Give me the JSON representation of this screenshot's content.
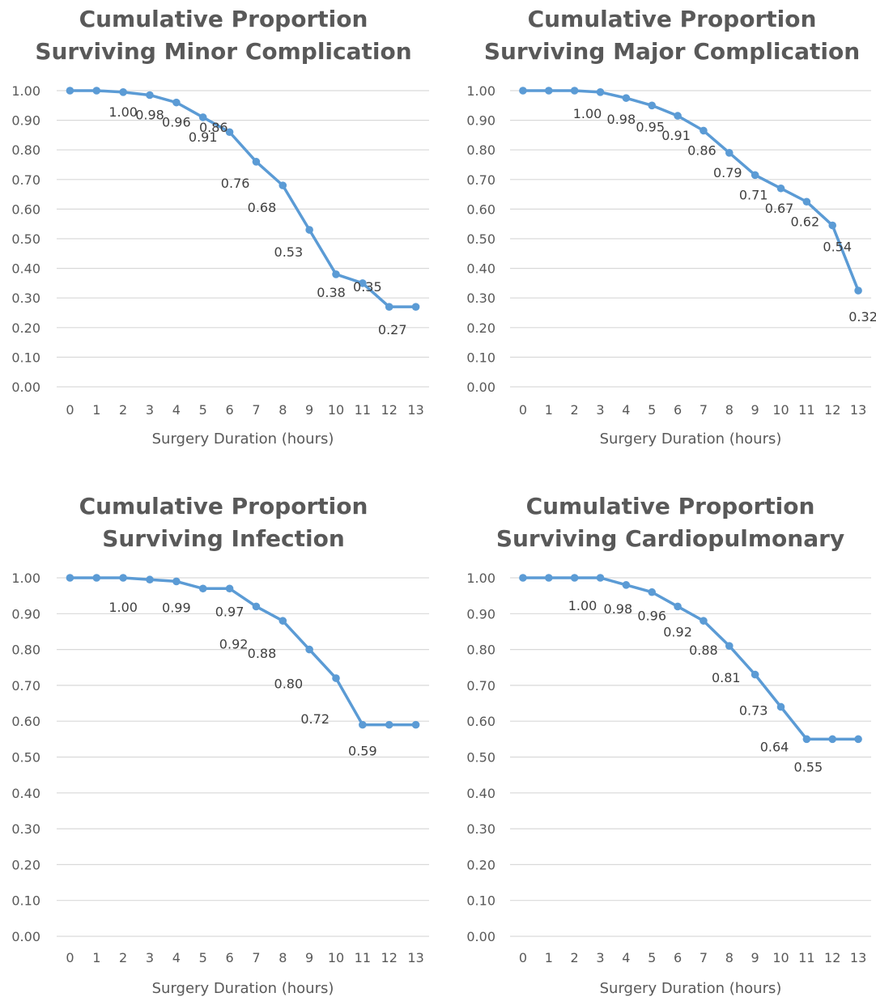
{
  "chart_data": [
    {
      "type": "line",
      "title": [
        "Cumulative Proportion",
        "Surviving Minor Complication"
      ],
      "xlabel": "Surgery Duration (hours)",
      "categories": [
        "0",
        "1",
        "2",
        "3",
        "4",
        "5",
        "6",
        "7",
        "8",
        "9",
        "10",
        "11",
        "12",
        "13"
      ],
      "yticks": [
        "0.00",
        "0.10",
        "0.20",
        "0.30",
        "0.40",
        "0.50",
        "0.60",
        "0.70",
        "0.80",
        "0.90",
        "1.00"
      ],
      "ylim": [
        0,
        1
      ],
      "grid": true,
      "series": [
        {
          "values": [
            1.0,
            1.0,
            0.995,
            0.985,
            0.96,
            0.91,
            0.86,
            0.76,
            0.68,
            0.53,
            0.38,
            0.35,
            0.27,
            0.27
          ]
        }
      ],
      "data_labels": [
        {
          "index": 2,
          "text": "1.00"
        },
        {
          "index": 3,
          "text": "0.98"
        },
        {
          "index": 4,
          "text": "0.96"
        },
        {
          "index": 5,
          "text": "0.91"
        },
        {
          "index": 6,
          "text": "0.86"
        },
        {
          "index": 7,
          "text": "0.76"
        },
        {
          "index": 8,
          "text": "0.68"
        },
        {
          "index": 9,
          "text": "0.53"
        },
        {
          "index": 10,
          "text": "0.38"
        },
        {
          "index": 11,
          "text": "0.35"
        },
        {
          "index": 12,
          "text": "0.27"
        }
      ]
    },
    {
      "type": "line",
      "title": [
        "Cumulative Proportion",
        "Surviving Major Complication"
      ],
      "xlabel": "Surgery Duration (hours)",
      "categories": [
        "0",
        "1",
        "2",
        "3",
        "4",
        "5",
        "6",
        "7",
        "8",
        "9",
        "10",
        "11",
        "12",
        "13"
      ],
      "yticks": [
        "0.00",
        "0.10",
        "0.20",
        "0.30",
        "0.40",
        "0.50",
        "0.60",
        "0.70",
        "0.80",
        "0.90",
        "1.00"
      ],
      "ylim": [
        0,
        1
      ],
      "grid": true,
      "series": [
        {
          "values": [
            1.0,
            1.0,
            1.0,
            0.995,
            0.975,
            0.95,
            0.915,
            0.865,
            0.79,
            0.715,
            0.67,
            0.625,
            0.545,
            0.325
          ]
        }
      ],
      "data_labels": [
        {
          "index": 3,
          "text": "1.00"
        },
        {
          "index": 4,
          "text": "0.98"
        },
        {
          "index": 5,
          "text": "0.95"
        },
        {
          "index": 6,
          "text": "0.91"
        },
        {
          "index": 7,
          "text": "0.86"
        },
        {
          "index": 8,
          "text": "0.79"
        },
        {
          "index": 9,
          "text": "0.71"
        },
        {
          "index": 10,
          "text": "0.67"
        },
        {
          "index": 11,
          "text": "0.62"
        },
        {
          "index": 12,
          "text": "0.54"
        },
        {
          "index": 13,
          "text": "0.32"
        }
      ]
    },
    {
      "type": "line",
      "title": [
        "Cumulative Proportion",
        "Surviving Infection"
      ],
      "xlabel": "Surgery Duration (hours)",
      "categories": [
        "0",
        "1",
        "2",
        "3",
        "4",
        "5",
        "6",
        "7",
        "8",
        "9",
        "10",
        "11",
        "12",
        "13"
      ],
      "yticks": [
        "0.00",
        "0.10",
        "0.20",
        "0.30",
        "0.40",
        "0.50",
        "0.60",
        "0.70",
        "0.80",
        "0.90",
        "1.00"
      ],
      "ylim": [
        0,
        1
      ],
      "grid": true,
      "series": [
        {
          "values": [
            1.0,
            1.0,
            1.0,
            0.995,
            0.99,
            0.97,
            0.97,
            0.92,
            0.88,
            0.8,
            0.72,
            0.59,
            0.59,
            0.59
          ]
        }
      ],
      "data_labels": [
        {
          "index": 2,
          "text": "1.00"
        },
        {
          "index": 4,
          "text": "0.99"
        },
        {
          "index": 6,
          "text": "0.97"
        },
        {
          "index": 7,
          "text": "0.92"
        },
        {
          "index": 8,
          "text": "0.88"
        },
        {
          "index": 9,
          "text": "0.80"
        },
        {
          "index": 10,
          "text": "0.72"
        },
        {
          "index": 11,
          "text": "0.59"
        }
      ]
    },
    {
      "type": "line",
      "title": [
        "Cumulative Proportion",
        "Surviving Cardiopulmonary"
      ],
      "xlabel": "Surgery Duration (hours)",
      "categories": [
        "0",
        "1",
        "2",
        "3",
        "4",
        "5",
        "6",
        "7",
        "8",
        "9",
        "10",
        "11",
        "12",
        "13"
      ],
      "yticks": [
        "0.00",
        "0.10",
        "0.20",
        "0.30",
        "0.40",
        "0.50",
        "0.60",
        "0.70",
        "0.80",
        "0.90",
        "1.00"
      ],
      "ylim": [
        0,
        1
      ],
      "grid": true,
      "series": [
        {
          "values": [
            1.0,
            1.0,
            1.0,
            1.0,
            0.98,
            0.96,
            0.92,
            0.88,
            0.81,
            0.73,
            0.64,
            0.55,
            0.55,
            0.55
          ]
        }
      ],
      "data_labels": [
        {
          "index": 3,
          "text": "1.00"
        },
        {
          "index": 4,
          "text": "0.98"
        },
        {
          "index": 5,
          "text": "0.96"
        },
        {
          "index": 6,
          "text": "0.92"
        },
        {
          "index": 7,
          "text": "0.88"
        },
        {
          "index": 8,
          "text": "0.81"
        },
        {
          "index": 9,
          "text": "0.73"
        },
        {
          "index": 10,
          "text": "0.64"
        },
        {
          "index": 11,
          "text": "0.55"
        }
      ]
    }
  ]
}
